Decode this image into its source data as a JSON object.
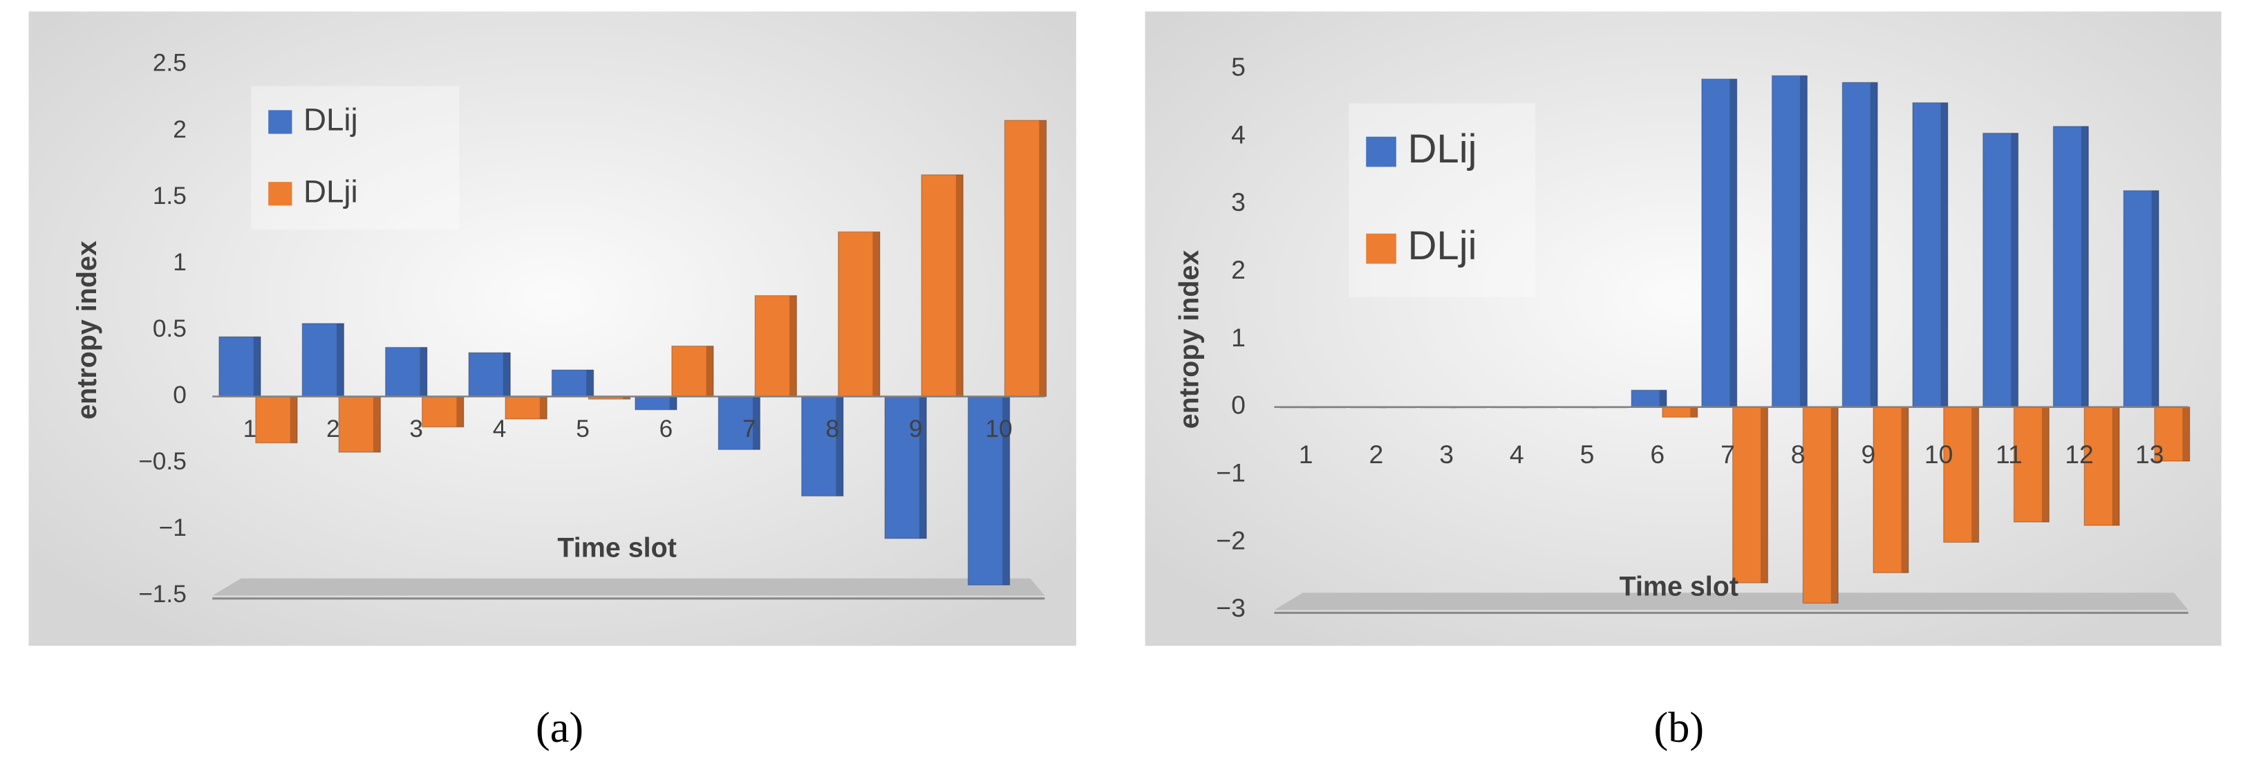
{
  "chart_data": [
    {
      "type": "bar",
      "caption": "(a)",
      "ylabel": "entropy index",
      "xlabel": "Time slot",
      "categories": [
        "1",
        "2",
        "3",
        "4",
        "5",
        "6",
        "7",
        "8",
        "9",
        "10"
      ],
      "series": [
        {
          "name": "DLij",
          "color": "#4472c4",
          "values": [
            0.45,
            0.55,
            0.37,
            0.33,
            0.2,
            -0.1,
            -0.4,
            -0.75,
            -1.07,
            -1.42
          ]
        },
        {
          "name": "DLji",
          "color": "#ed7d31",
          "values": [
            -0.35,
            -0.42,
            -0.23,
            -0.17,
            -0.02,
            0.38,
            0.76,
            1.24,
            1.67,
            2.08
          ]
        }
      ],
      "ylim": [
        -1.5,
        2.5
      ],
      "yticks": [
        {
          "value": -1.5,
          "label": "−1.5"
        },
        {
          "value": -1,
          "label": "−1"
        },
        {
          "value": -0.5,
          "label": "−0.5"
        },
        0,
        0.5,
        1,
        1.5,
        2,
        2.5
      ],
      "legend": "upper left"
    },
    {
      "type": "bar",
      "caption": "(b)",
      "ylabel": "entropy index",
      "xlabel": "Time slot",
      "categories": [
        "1",
        "2",
        "3",
        "4",
        "5",
        "6",
        "7",
        "8",
        "9",
        "10",
        "11",
        "12",
        "13"
      ],
      "series": [
        {
          "name": "DLij",
          "color": "#4472c4",
          "values": [
            0,
            0,
            0,
            0,
            0,
            0.25,
            4.85,
            4.9,
            4.8,
            4.5,
            4.05,
            4.15,
            3.2
          ]
        },
        {
          "name": "DLji",
          "color": "#ed7d31",
          "values": [
            0,
            0,
            0,
            0,
            0,
            -0.15,
            -2.6,
            -2.9,
            -2.45,
            -2.0,
            -1.7,
            -1.75,
            -0.8
          ]
        }
      ],
      "ylim": [
        -3,
        5
      ],
      "yticks": [
        {
          "value": -3,
          "label": "−3"
        },
        {
          "value": -2,
          "label": "−2"
        },
        {
          "value": -1,
          "label": "−1"
        },
        0,
        1,
        2,
        3,
        4,
        5
      ],
      "legend": "upper left"
    }
  ]
}
